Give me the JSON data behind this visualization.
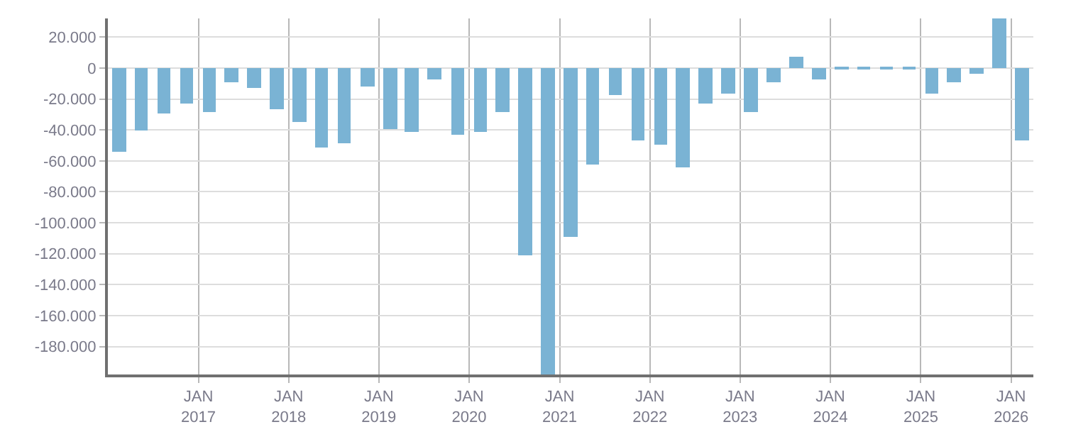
{
  "chart_data": {
    "type": "bar",
    "color": "#7ab3d4",
    "x": [
      "2016-02-15",
      "2016-05-15",
      "2016-08-15",
      "2016-11-15",
      "2017-02-15",
      "2017-05-15",
      "2017-08-15",
      "2017-11-15",
      "2018-02-15",
      "2018-05-15",
      "2018-08-15",
      "2018-11-15",
      "2019-02-15",
      "2019-05-15",
      "2019-08-15",
      "2019-11-15",
      "2020-02-15",
      "2020-05-15",
      "2020-08-15",
      "2020-11-15",
      "2021-02-15",
      "2021-05-15",
      "2021-08-15",
      "2021-11-15",
      "2022-02-15",
      "2022-05-15",
      "2022-08-15",
      "2022-11-15",
      "2023-02-15",
      "2023-05-15",
      "2023-08-15",
      "2023-11-15",
      "2024-02-15",
      "2024-05-15",
      "2024-08-15",
      "2024-11-15",
      "2025-02-15",
      "2025-05-15",
      "2025-08-15",
      "2025-11-15",
      "2026-02-15"
    ],
    "values": [
      -54000,
      -40600,
      -29400,
      -23300,
      -28500,
      -9500,
      -13000,
      -26800,
      -34500,
      -51800,
      -48400,
      -12100,
      -39700,
      -41500,
      -7800,
      -43200,
      -41500,
      -28500,
      -121000,
      -198000,
      -109300,
      -62800,
      -17900,
      -46400,
      -49800,
      -64500,
      -23000,
      -17000,
      -28200,
      -9200,
      6900,
      -7500,
      -600,
      -600,
      -600,
      -600,
      -17000,
      -9200,
      -4000,
      32000,
      -47200
    ],
    "xlim": [
      "2016-01-01",
      "2026-04-01"
    ],
    "xticks": [
      {
        "value": "2017-01-01",
        "label": "JAN\n2017"
      },
      {
        "value": "2018-01-01",
        "label": "JAN\n2018"
      },
      {
        "value": "2019-01-01",
        "label": "JAN\n2019"
      },
      {
        "value": "2020-01-01",
        "label": "JAN\n2020"
      },
      {
        "value": "2021-01-01",
        "label": "JAN\n2021"
      },
      {
        "value": "2022-01-01",
        "label": "JAN\n2022"
      },
      {
        "value": "2023-01-01",
        "label": "JAN\n2023"
      },
      {
        "value": "2024-01-01",
        "label": "JAN\n2024"
      },
      {
        "value": "2025-01-01",
        "label": "JAN\n2025"
      },
      {
        "value": "2026-01-01",
        "label": "JAN\n2026"
      }
    ],
    "ylim": [
      -198000,
      32000
    ],
    "yticks": [
      {
        "value": 20000,
        "label": "20.000"
      },
      0,
      {
        "value": -20000,
        "label": "-20.000"
      },
      {
        "value": -40000,
        "label": "-40.000"
      },
      {
        "value": -60000,
        "label": "-60.000"
      },
      {
        "value": -80000,
        "label": "-80.000"
      },
      {
        "value": -100000,
        "label": "-100.000"
      },
      {
        "value": -120000,
        "label": "-120.000"
      },
      {
        "value": -140000,
        "label": "-140.000"
      },
      {
        "value": -160000,
        "label": "-160.000"
      },
      {
        "value": -180000,
        "label": "-180.000"
      }
    ],
    "grid": true,
    "legend": false
  }
}
